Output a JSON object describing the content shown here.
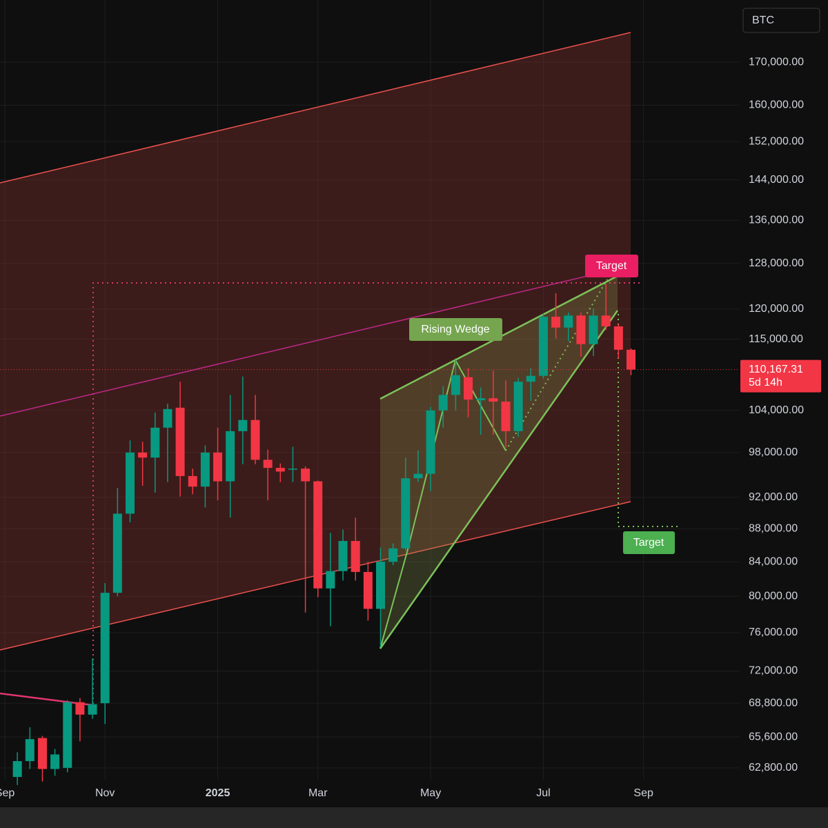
{
  "chart_data": {
    "type": "candlestick",
    "symbol": "BTC",
    "log_scale": true,
    "grid": true,
    "up_color": "#089981",
    "down_color": "#f23645",
    "categories": [
      "Sep",
      null,
      null,
      null,
      null,
      null,
      null,
      null,
      "Nov",
      null,
      null,
      null,
      null,
      null,
      null,
      null,
      null,
      "2025",
      null,
      null,
      null,
      null,
      null,
      null,
      null,
      "Mar",
      null,
      null,
      null,
      null,
      null,
      null,
      null,
      null,
      "May",
      null,
      null,
      null,
      null,
      null,
      null,
      null,
      null,
      "Jul",
      null,
      null,
      null,
      null,
      null,
      null,
      null,
      "Sep"
    ],
    "open": [
      null,
      62000,
      63400,
      65500,
      62700,
      62800,
      68900,
      67700,
      68800,
      80400,
      89900,
      98000,
      97300,
      101500,
      104400,
      94800,
      93400,
      98000,
      94100,
      101000,
      102600,
      97000,
      95900,
      95700,
      95800,
      94100,
      80900,
      82900,
      86500,
      82800,
      78600,
      84000,
      85600,
      94500,
      95100,
      104000,
      106300,
      109000,
      105500,
      105800,
      105300,
      101000,
      108300,
      109200,
      118700,
      116900,
      118900,
      114200,
      118900,
      117100,
      113300,
      null
    ],
    "high": [
      null,
      64200,
      66500,
      65700,
      64500,
      69100,
      69300,
      73300,
      81500,
      93200,
      99700,
      99500,
      103700,
      105000,
      108300,
      95800,
      99000,
      101500,
      106300,
      109100,
      106300,
      98400,
      96500,
      98800,
      96100,
      94200,
      87500,
      87900,
      89400,
      84000,
      85700,
      86200,
      97300,
      98300,
      104500,
      107600,
      111700,
      110400,
      107400,
      110000,
      108500,
      108900,
      110400,
      119200,
      122700,
      119400,
      119400,
      120100,
      124300,
      117500,
      113500,
      null
    ],
    "low": [
      null,
      61300,
      62700,
      61600,
      62100,
      62400,
      65200,
      67300,
      66800,
      80000,
      88800,
      93500,
      92600,
      94000,
      92100,
      92400,
      90700,
      91600,
      89400,
      96400,
      96400,
      91600,
      94000,
      94000,
      78200,
      79900,
      76700,
      81800,
      81800,
      77300,
      74500,
      83600,
      85300,
      94000,
      92800,
      101500,
      104000,
      103000,
      100500,
      100500,
      98700,
      100200,
      105400,
      108800,
      115100,
      114700,
      112200,
      112300,
      116500,
      111900,
      109300,
      null
    ],
    "close": [
      null,
      63400,
      65400,
      62700,
      64000,
      68900,
      67700,
      68700,
      80400,
      89900,
      98000,
      97300,
      101500,
      104200,
      94800,
      93400,
      98000,
      94100,
      101000,
      102600,
      97000,
      95900,
      95400,
      95800,
      94100,
      80900,
      82900,
      86500,
      82800,
      78600,
      84000,
      85600,
      94500,
      95100,
      104000,
      106300,
      109300,
      105600,
      105800,
      105300,
      101000,
      108300,
      109200,
      118700,
      116900,
      118900,
      114200,
      118900,
      117100,
      113300,
      110167.31,
      null
    ],
    "ylim": [
      59400,
      185600
    ],
    "yticks": [
      {
        "value": 62800,
        "label": "62,800.00"
      },
      {
        "value": 65600,
        "label": "65,600.00"
      },
      {
        "value": 68800,
        "label": "68,800.00"
      },
      {
        "value": 72000,
        "label": "72,000.00"
      },
      {
        "value": 76000,
        "label": "76,000.00"
      },
      {
        "value": 80000,
        "label": "80,000.00"
      },
      {
        "value": 84000,
        "label": "84,000.00"
      },
      {
        "value": 88000,
        "label": "88,000.00"
      },
      {
        "value": 92000,
        "label": "92,000.00"
      },
      {
        "value": 98000,
        "label": "98,000.00"
      },
      {
        "value": 104000,
        "label": "104,000.00"
      },
      {
        "value": 115000,
        "label": "115,000.00"
      },
      {
        "value": 120000,
        "label": "120,000.00"
      },
      {
        "value": 128000,
        "label": "128,000.00"
      },
      {
        "value": 136000,
        "label": "136,000.00"
      },
      {
        "value": 144000,
        "label": "144,000.00"
      },
      {
        "value": 152000,
        "label": "152,000.00"
      },
      {
        "value": 160000,
        "label": "160,000.00"
      },
      {
        "value": 170000,
        "label": "170,000.00"
      }
    ],
    "last_price": {
      "value": 110167.31,
      "label": "110,167.31"
    },
    "countdown": "5d 14h",
    "annotations": [
      "Rising Wedge",
      "Target",
      "Target"
    ]
  }
}
